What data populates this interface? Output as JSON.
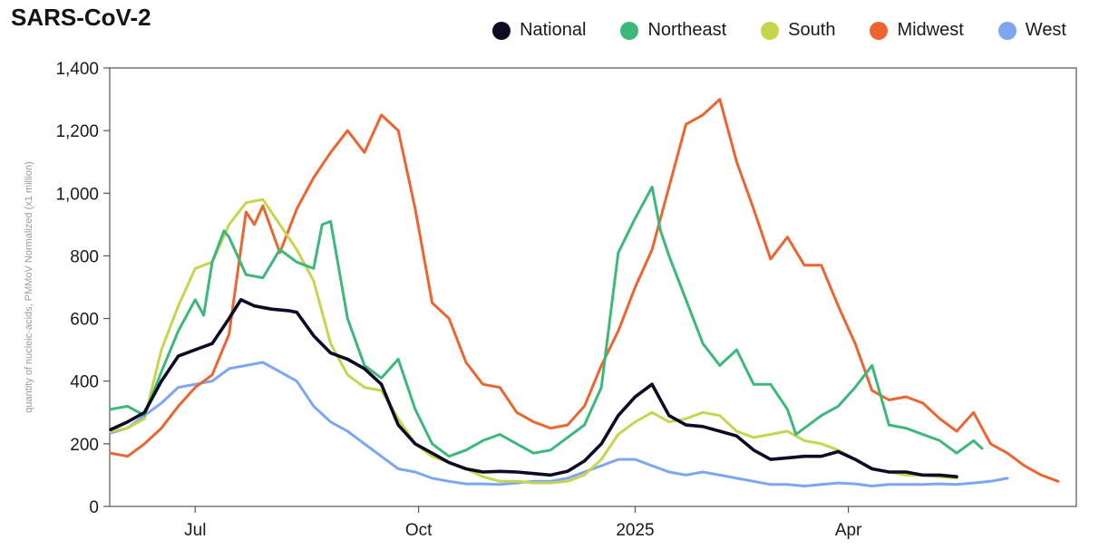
{
  "chart_data": {
    "type": "line",
    "title": "SARS-CoV-2",
    "xlabel": "",
    "ylabel": "quantity of nucleic-acids, PMMoV Normalized (x1 million)",
    "ylim": [
      0,
      1400
    ],
    "yticks": [
      0,
      200,
      400,
      600,
      800,
      "1,000",
      "1,200",
      "1,400"
    ],
    "ytick_values": [
      0,
      200,
      400,
      600,
      800,
      1000,
      1200,
      1400
    ],
    "x_range_weeks": [
      0,
      56
    ],
    "xticks": [
      {
        "label": "Jul",
        "week": 5
      },
      {
        "label": "Oct",
        "week": 18.2
      },
      {
        "label": "2025",
        "week": 31
      },
      {
        "label": "Apr",
        "week": 43.6
      }
    ],
    "legend_position": "top-right",
    "x_unit": "weeks since early June 2024",
    "series": [
      {
        "name": "National",
        "color": "#0d0b26",
        "points": [
          [
            0,
            245
          ],
          [
            1,
            270
          ],
          [
            2,
            300
          ],
          [
            3,
            400
          ],
          [
            4,
            480
          ],
          [
            5,
            500
          ],
          [
            6,
            520
          ],
          [
            7,
            600
          ],
          [
            7.7,
            660
          ],
          [
            8.5,
            640
          ],
          [
            9.5,
            630
          ],
          [
            10.5,
            625
          ],
          [
            11,
            620
          ],
          [
            12,
            545
          ],
          [
            13,
            490
          ],
          [
            14,
            470
          ],
          [
            15,
            440
          ],
          [
            16,
            390
          ],
          [
            17,
            260
          ],
          [
            18,
            200
          ],
          [
            19,
            170
          ],
          [
            20,
            140
          ],
          [
            21,
            120
          ],
          [
            22,
            110
          ],
          [
            23,
            112
          ],
          [
            24,
            110
          ],
          [
            25,
            105
          ],
          [
            26,
            100
          ],
          [
            27,
            112
          ],
          [
            28,
            145
          ],
          [
            29,
            200
          ],
          [
            30,
            290
          ],
          [
            31,
            350
          ],
          [
            32,
            390
          ],
          [
            33,
            290
          ],
          [
            34,
            260
          ],
          [
            35,
            255
          ],
          [
            36,
            240
          ],
          [
            37,
            225
          ],
          [
            38,
            180
          ],
          [
            39,
            150
          ],
          [
            40,
            155
          ],
          [
            41,
            160
          ],
          [
            42,
            160
          ],
          [
            43,
            175
          ],
          [
            44,
            150
          ],
          [
            45,
            120
          ],
          [
            46,
            110
          ],
          [
            47,
            110
          ],
          [
            48,
            100
          ],
          [
            49,
            100
          ],
          [
            50,
            95
          ]
        ]
      },
      {
        "name": "Northeast",
        "color": "#3bb87a",
        "points": [
          [
            0,
            310
          ],
          [
            1,
            320
          ],
          [
            2,
            290
          ],
          [
            3,
            430
          ],
          [
            4,
            560
          ],
          [
            5,
            660
          ],
          [
            5.5,
            610
          ],
          [
            6,
            780
          ],
          [
            6.7,
            880
          ],
          [
            7,
            860
          ],
          [
            8,
            740
          ],
          [
            9,
            730
          ],
          [
            10,
            820
          ],
          [
            11,
            780
          ],
          [
            12,
            760
          ],
          [
            12.5,
            900
          ],
          [
            13,
            910
          ],
          [
            14,
            600
          ],
          [
            15,
            450
          ],
          [
            16,
            410
          ],
          [
            17,
            470
          ],
          [
            18,
            310
          ],
          [
            19,
            200
          ],
          [
            20,
            160
          ],
          [
            21,
            180
          ],
          [
            22,
            210
          ],
          [
            23,
            230
          ],
          [
            24,
            200
          ],
          [
            25,
            170
          ],
          [
            26,
            180
          ],
          [
            27,
            220
          ],
          [
            28,
            260
          ],
          [
            29,
            380
          ],
          [
            30,
            810
          ],
          [
            31,
            920
          ],
          [
            32,
            1020
          ],
          [
            32.5,
            880
          ],
          [
            33,
            800
          ],
          [
            34,
            660
          ],
          [
            35,
            520
          ],
          [
            36,
            450
          ],
          [
            37,
            500
          ],
          [
            38,
            390
          ],
          [
            39,
            390
          ],
          [
            40,
            310
          ],
          [
            40.5,
            230
          ],
          [
            41,
            250
          ],
          [
            42,
            290
          ],
          [
            43,
            320
          ],
          [
            44,
            380
          ],
          [
            45,
            450
          ],
          [
            46,
            260
          ],
          [
            47,
            250
          ],
          [
            48,
            230
          ],
          [
            49,
            210
          ],
          [
            50,
            170
          ],
          [
            51,
            210
          ],
          [
            51.5,
            185
          ]
        ]
      },
      {
        "name": "South",
        "color": "#c6d54c",
        "points": [
          [
            0,
            240
          ],
          [
            1,
            250
          ],
          [
            2,
            280
          ],
          [
            3,
            500
          ],
          [
            4,
            640
          ],
          [
            5,
            760
          ],
          [
            6,
            780
          ],
          [
            7,
            900
          ],
          [
            8,
            970
          ],
          [
            9,
            980
          ],
          [
            10,
            900
          ],
          [
            11,
            820
          ],
          [
            12,
            720
          ],
          [
            13,
            520
          ],
          [
            14,
            420
          ],
          [
            15,
            380
          ],
          [
            16,
            370
          ],
          [
            17,
            280
          ],
          [
            18,
            200
          ],
          [
            19,
            160
          ],
          [
            20,
            140
          ],
          [
            21,
            120
          ],
          [
            22,
            95
          ],
          [
            23,
            80
          ],
          [
            24,
            80
          ],
          [
            25,
            75
          ],
          [
            26,
            75
          ],
          [
            27,
            80
          ],
          [
            28,
            100
          ],
          [
            29,
            150
          ],
          [
            30,
            230
          ],
          [
            31,
            270
          ],
          [
            32,
            300
          ],
          [
            33,
            270
          ],
          [
            34,
            280
          ],
          [
            35,
            300
          ],
          [
            36,
            290
          ],
          [
            37,
            240
          ],
          [
            38,
            220
          ],
          [
            39,
            230
          ],
          [
            40,
            240
          ],
          [
            41,
            210
          ],
          [
            42,
            200
          ],
          [
            43,
            180
          ],
          [
            44,
            150
          ],
          [
            45,
            120
          ],
          [
            46,
            110
          ],
          [
            47,
            100
          ],
          [
            48,
            100
          ],
          [
            49,
            95
          ],
          [
            50,
            90
          ]
        ]
      },
      {
        "name": "Midwest",
        "color": "#ec6531",
        "points": [
          [
            0,
            170
          ],
          [
            1,
            160
          ],
          [
            2,
            200
          ],
          [
            3,
            250
          ],
          [
            4,
            320
          ],
          [
            5,
            380
          ],
          [
            6,
            420
          ],
          [
            7,
            550
          ],
          [
            8,
            940
          ],
          [
            8.5,
            900
          ],
          [
            9,
            960
          ],
          [
            10,
            810
          ],
          [
            11,
            950
          ],
          [
            12,
            1050
          ],
          [
            13,
            1130
          ],
          [
            14,
            1200
          ],
          [
            15,
            1130
          ],
          [
            16,
            1250
          ],
          [
            17,
            1200
          ],
          [
            18,
            950
          ],
          [
            19,
            650
          ],
          [
            20,
            600
          ],
          [
            21,
            460
          ],
          [
            22,
            390
          ],
          [
            23,
            380
          ],
          [
            24,
            300
          ],
          [
            25,
            270
          ],
          [
            26,
            250
          ],
          [
            27,
            260
          ],
          [
            28,
            320
          ],
          [
            29,
            450
          ],
          [
            30,
            560
          ],
          [
            31,
            700
          ],
          [
            32,
            820
          ],
          [
            33,
            1020
          ],
          [
            34,
            1220
          ],
          [
            35,
            1250
          ],
          [
            36,
            1300
          ],
          [
            37,
            1100
          ],
          [
            38,
            950
          ],
          [
            39,
            790
          ],
          [
            40,
            860
          ],
          [
            41,
            770
          ],
          [
            42,
            770
          ],
          [
            43,
            640
          ],
          [
            44,
            520
          ],
          [
            45,
            370
          ],
          [
            46,
            340
          ],
          [
            47,
            350
          ],
          [
            48,
            330
          ],
          [
            49,
            280
          ],
          [
            50,
            240
          ],
          [
            51,
            300
          ],
          [
            52,
            200
          ],
          [
            53,
            170
          ],
          [
            54,
            130
          ],
          [
            55,
            100
          ],
          [
            56,
            80
          ]
        ]
      },
      {
        "name": "West",
        "color": "#7da6f2",
        "points": [
          [
            0,
            235
          ],
          [
            1,
            250
          ],
          [
            2,
            290
          ],
          [
            3,
            330
          ],
          [
            4,
            380
          ],
          [
            5,
            390
          ],
          [
            6,
            400
          ],
          [
            7,
            440
          ],
          [
            8,
            450
          ],
          [
            9,
            460
          ],
          [
            10,
            430
          ],
          [
            11,
            400
          ],
          [
            12,
            320
          ],
          [
            13,
            270
          ],
          [
            14,
            240
          ],
          [
            15,
            200
          ],
          [
            16,
            160
          ],
          [
            17,
            120
          ],
          [
            18,
            110
          ],
          [
            19,
            90
          ],
          [
            20,
            80
          ],
          [
            21,
            72
          ],
          [
            22,
            72
          ],
          [
            23,
            70
          ],
          [
            24,
            75
          ],
          [
            25,
            80
          ],
          [
            26,
            80
          ],
          [
            27,
            90
          ],
          [
            28,
            110
          ],
          [
            29,
            130
          ],
          [
            30,
            150
          ],
          [
            31,
            150
          ],
          [
            32,
            130
          ],
          [
            33,
            110
          ],
          [
            34,
            100
          ],
          [
            35,
            110
          ],
          [
            36,
            100
          ],
          [
            37,
            90
          ],
          [
            38,
            80
          ],
          [
            39,
            70
          ],
          [
            40,
            70
          ],
          [
            41,
            65
          ],
          [
            42,
            70
          ],
          [
            43,
            75
          ],
          [
            44,
            72
          ],
          [
            45,
            65
          ],
          [
            46,
            70
          ],
          [
            47,
            70
          ],
          [
            48,
            70
          ],
          [
            49,
            72
          ],
          [
            50,
            70
          ],
          [
            51,
            75
          ],
          [
            52,
            80
          ],
          [
            53,
            90
          ]
        ]
      }
    ]
  }
}
